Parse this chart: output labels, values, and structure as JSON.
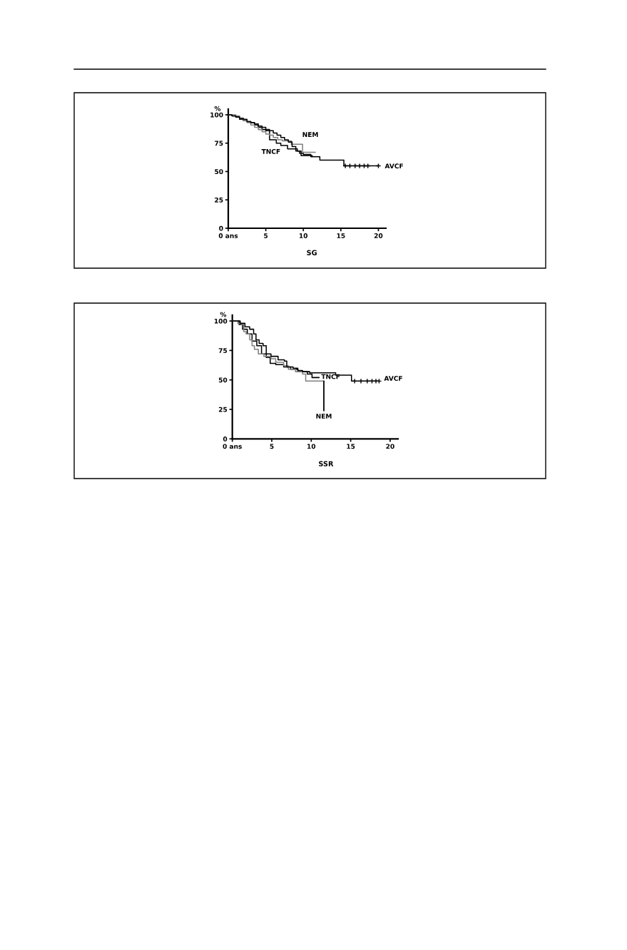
{
  "chart_data": [
    {
      "type": "step",
      "xlabel": "SG",
      "ylabel": "%",
      "xlim": [
        0,
        21
      ],
      "xticks": [
        {
          "value": 0,
          "label": "0 ans"
        },
        5,
        10,
        15,
        20
      ],
      "ylim": [
        0,
        105
      ],
      "yticks": [
        0,
        25,
        50,
        75,
        100
      ],
      "series": [
        {
          "name": "TNCF",
          "color": "#000000",
          "x": [
            0,
            0.5,
            1,
            1.5,
            2,
            2.5,
            3,
            3.5,
            4,
            4.5,
            5,
            5.5,
            6.4,
            7,
            7.9,
            9.2,
            9.7,
            10.5,
            11.2
          ],
          "values": [
            100,
            99,
            98,
            96,
            95,
            94,
            93,
            91,
            89,
            87,
            86,
            78,
            75,
            73,
            70,
            68,
            64,
            64,
            64
          ]
        },
        {
          "name": "NEM",
          "color": "#808080",
          "x": [
            0,
            0.5,
            1,
            1.5,
            2,
            2.5,
            3,
            3.5,
            4,
            4.5,
            5,
            5.5,
            6,
            6.6,
            7.2,
            8.4,
            9.9,
            11.6
          ],
          "values": [
            100,
            100,
            99,
            97,
            95,
            93,
            91,
            89,
            87,
            85,
            83,
            82,
            80,
            78,
            77,
            74,
            67,
            67
          ]
        },
        {
          "name": "AVCF",
          "color": "#000000",
          "x": [
            0,
            0.5,
            1,
            1.5,
            2,
            2.5,
            3,
            3.5,
            4,
            4.5,
            5,
            5.5,
            6,
            6.5,
            7,
            7.5,
            8,
            8.5,
            9,
            9.5,
            10,
            11,
            12.2,
            15.4,
            20
          ],
          "values": [
            100,
            99,
            98,
            97,
            96,
            94,
            93,
            92,
            90,
            89,
            87,
            86,
            84,
            82,
            80,
            78,
            76,
            72,
            68,
            66,
            65,
            63,
            60,
            55,
            55
          ]
        },
        {
          "type": "scatter",
          "marker": "cross",
          "color": "#000000",
          "x": [
            15.6,
            16.2,
            16.9,
            17.5,
            18.1,
            18.6,
            20
          ],
          "values": [
            55,
            55,
            55,
            55,
            55,
            55,
            55
          ]
        }
      ]
    },
    {
      "type": "step",
      "xlabel": "SSR",
      "ylabel": "%",
      "xlim": [
        0,
        21
      ],
      "xticks": [
        {
          "value": 0,
          "label": "0 ans"
        },
        5,
        10,
        15,
        20
      ],
      "ylim": [
        0,
        105
      ],
      "yticks": [
        0,
        25,
        50,
        75,
        100
      ],
      "series": [
        {
          "name": "TNCF",
          "color": "#000000",
          "x": [
            0,
            0.85,
            1.3,
            1.9,
            2.5,
            3.1,
            3.7,
            4.3,
            4.8,
            5.5,
            6.5,
            7.4,
            8.3,
            9.5,
            10.1,
            11
          ],
          "values": [
            100,
            97,
            93,
            89,
            83,
            79,
            72,
            69,
            64,
            63,
            61,
            59,
            57,
            55,
            52,
            52
          ]
        },
        {
          "name": "NEM",
          "color": "#808080",
          "x": [
            0,
            0.7,
            1.15,
            1.45,
            1.75,
            2.2,
            2.5,
            2.8,
            3.3,
            4,
            4.9,
            5.5,
            6.5,
            7.1,
            8,
            8.9,
            9.3,
            11.6
          ],
          "values": [
            100,
            98,
            97,
            91,
            89,
            84,
            79,
            76,
            72,
            70,
            68,
            65,
            62,
            59,
            57,
            55,
            49,
            49
          ]
        },
        {
          "name": "AVCF",
          "color": "#000000",
          "x": [
            0,
            1,
            1.6,
            2.2,
            2.7,
            3,
            3.4,
            3.9,
            4.3,
            4.9,
            5.8,
            6.6,
            6.9,
            7.7,
            8.3,
            8.9,
            9.8,
            13.1,
            15.1,
            18.6
          ],
          "values": [
            100,
            98,
            95,
            93,
            89,
            84,
            81,
            79,
            72,
            70,
            67,
            66,
            61,
            60,
            58,
            57,
            56,
            54,
            49,
            49
          ]
        },
        {
          "type": "scatter",
          "marker": "cross",
          "color": "#000000",
          "x": [
            15.5,
            16.3,
            17.1,
            17.7,
            18.2,
            18.6
          ],
          "values": [
            49,
            49,
            49,
            49,
            49,
            49
          ]
        }
      ]
    }
  ]
}
